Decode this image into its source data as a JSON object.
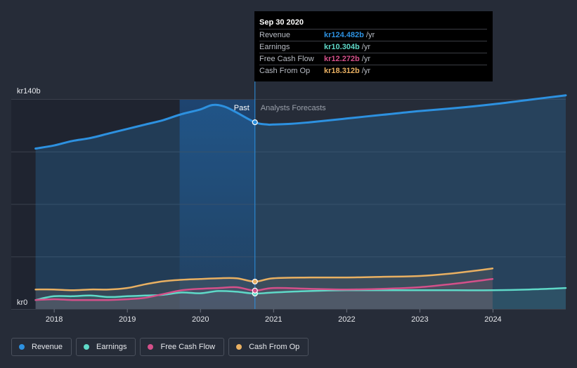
{
  "chart_data": {
    "type": "area",
    "y_axis": {
      "top_label": "kr140b",
      "bottom_label": "kr0",
      "ylim": [
        0,
        140
      ]
    },
    "x_ticks": [
      "2018",
      "2019",
      "2020",
      "2021",
      "2022",
      "2023",
      "2024"
    ],
    "xlim": [
      2017.72,
      2025.0
    ],
    "divider_x": 2020.75,
    "highlight_start": 2019.72,
    "past_label": "Past",
    "forecast_label": "Analysts Forecasts",
    "grid": true,
    "legend_position": "bottom-left",
    "series": [
      {
        "name": "Revenue",
        "color": "#2d91e0",
        "x": [
          2017.75,
          2018.0,
          2018.25,
          2018.5,
          2018.75,
          2019.0,
          2019.25,
          2019.5,
          2019.75,
          2020.0,
          2020.17,
          2020.33,
          2020.5,
          2020.75,
          2020.92,
          2021.0,
          2021.25,
          2021.5,
          2022.0,
          2022.5,
          2023.0,
          2023.5,
          2024.0,
          2024.5,
          2025.0
        ],
        "y": [
          107,
          109,
          112,
          114,
          117,
          120,
          123,
          126,
          130,
          133,
          136,
          135,
          131,
          124.5,
          123,
          123,
          123.5,
          124.5,
          127,
          129.5,
          132,
          134,
          136.5,
          139.5,
          142.5
        ]
      },
      {
        "name": "Earnings",
        "color": "#5fd9c8",
        "x": [
          2017.75,
          2018.0,
          2018.25,
          2018.5,
          2018.75,
          2019.0,
          2019.25,
          2019.5,
          2019.75,
          2020.0,
          2020.25,
          2020.5,
          2020.75,
          2021.0,
          2021.5,
          2022.0,
          2022.5,
          2023.0,
          2023.5,
          2024.0,
          2024.5,
          2025.0
        ],
        "y": [
          6,
          8.5,
          8.5,
          9,
          8,
          8.5,
          9,
          9.5,
          11,
          10.5,
          12,
          11.5,
          10.3,
          11,
          12,
          12.5,
          12.5,
          12.5,
          12.5,
          12.5,
          13,
          14
        ]
      },
      {
        "name": "Free Cash Flow",
        "color": "#d4508a",
        "x": [
          2017.75,
          2018.0,
          2018.25,
          2018.5,
          2018.75,
          2019.0,
          2019.25,
          2019.5,
          2019.75,
          2020.0,
          2020.25,
          2020.5,
          2020.75,
          2021.0,
          2021.5,
          2022.0,
          2022.5,
          2023.0,
          2023.5,
          2024.0
        ],
        "y": [
          6,
          6.5,
          6,
          6,
          6,
          6.5,
          7.5,
          10,
          12.5,
          13.5,
          14,
          14.5,
          12.3,
          14,
          13.5,
          13,
          13.5,
          14.5,
          17,
          20
        ]
      },
      {
        "name": "Cash From Op",
        "color": "#e9b062",
        "x": [
          2017.75,
          2018.0,
          2018.25,
          2018.5,
          2018.75,
          2019.0,
          2019.25,
          2019.5,
          2019.75,
          2020.0,
          2020.25,
          2020.5,
          2020.75,
          2021.0,
          2021.5,
          2022.0,
          2022.5,
          2023.0,
          2023.5,
          2024.0
        ],
        "y": [
          13,
          13,
          12.5,
          13,
          13,
          14,
          16.5,
          18.5,
          19.5,
          20,
          20.5,
          20.5,
          18.3,
          20.5,
          21,
          21,
          21.5,
          22,
          24,
          27
        ]
      }
    ]
  },
  "tooltip": {
    "date": "Sep 30 2020",
    "rows": [
      {
        "name": "Revenue",
        "value": "kr124.482b",
        "unit": "/yr",
        "color": "#2d91e0"
      },
      {
        "name": "Earnings",
        "value": "kr10.304b",
        "unit": "/yr",
        "color": "#5fd9c8"
      },
      {
        "name": "Free Cash Flow",
        "value": "kr12.272b",
        "unit": "/yr",
        "color": "#d4508a"
      },
      {
        "name": "Cash From Op",
        "value": "kr18.312b",
        "unit": "/yr",
        "color": "#e9b062"
      }
    ]
  },
  "legend": [
    {
      "label": "Revenue",
      "color": "#2d91e0"
    },
    {
      "label": "Earnings",
      "color": "#5fd9c8"
    },
    {
      "label": "Free Cash Flow",
      "color": "#d4508a"
    },
    {
      "label": "Cash From Op",
      "color": "#e9b062"
    }
  ]
}
